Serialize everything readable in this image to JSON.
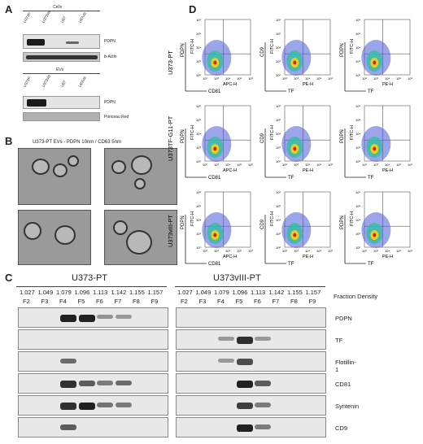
{
  "panelA": {
    "label": "A",
    "cells_title": "Cells",
    "evs_title": "EVs",
    "lanes": [
      "U373P",
      "U373vIII",
      "U87",
      "U87vIII"
    ],
    "cells_markers": [
      "PDPN",
      "b-Actin"
    ],
    "evs_markers": [
      "PDPN",
      "Ponceau Red"
    ]
  },
  "panelB": {
    "label": "B",
    "title": "U373-PT EVs - PDPN 10nm / CD63 5nm"
  },
  "panelC": {
    "label": "C",
    "left_title": "U373-PT",
    "right_title": "U373vIII-PT",
    "densities": [
      "1.027",
      "1.049",
      "1.079",
      "1.096",
      "1.113",
      "1.142",
      "1.155",
      "1.157"
    ],
    "fractions": [
      "F2",
      "F3",
      "F4",
      "F5",
      "F6",
      "F7",
      "F8",
      "F9"
    ],
    "density_label": "Fraction Density",
    "markers": [
      "PDPN",
      "TF",
      "Flotillin-1",
      "CD81",
      "Syntenin",
      "CD9"
    ]
  },
  "panelD": {
    "label": "D",
    "rows": [
      "U373-PT",
      "U373TF-G11-PT",
      "U373vIII-PT"
    ],
    "axes": [
      {
        "y": "PDPN",
        "yh": "FITC-H",
        "x": "CD81",
        "xh": "APC-H"
      },
      {
        "y": "CD9",
        "yh": "FITC-H",
        "x": "TF",
        "xh": "PE-H"
      },
      {
        "y": "PDPN",
        "yh": "FITC-H",
        "x": "TF",
        "xh": "PE-H"
      }
    ],
    "ticks": [
      "10²",
      "10³",
      "10⁴",
      "10⁵",
      "10⁶"
    ]
  }
}
